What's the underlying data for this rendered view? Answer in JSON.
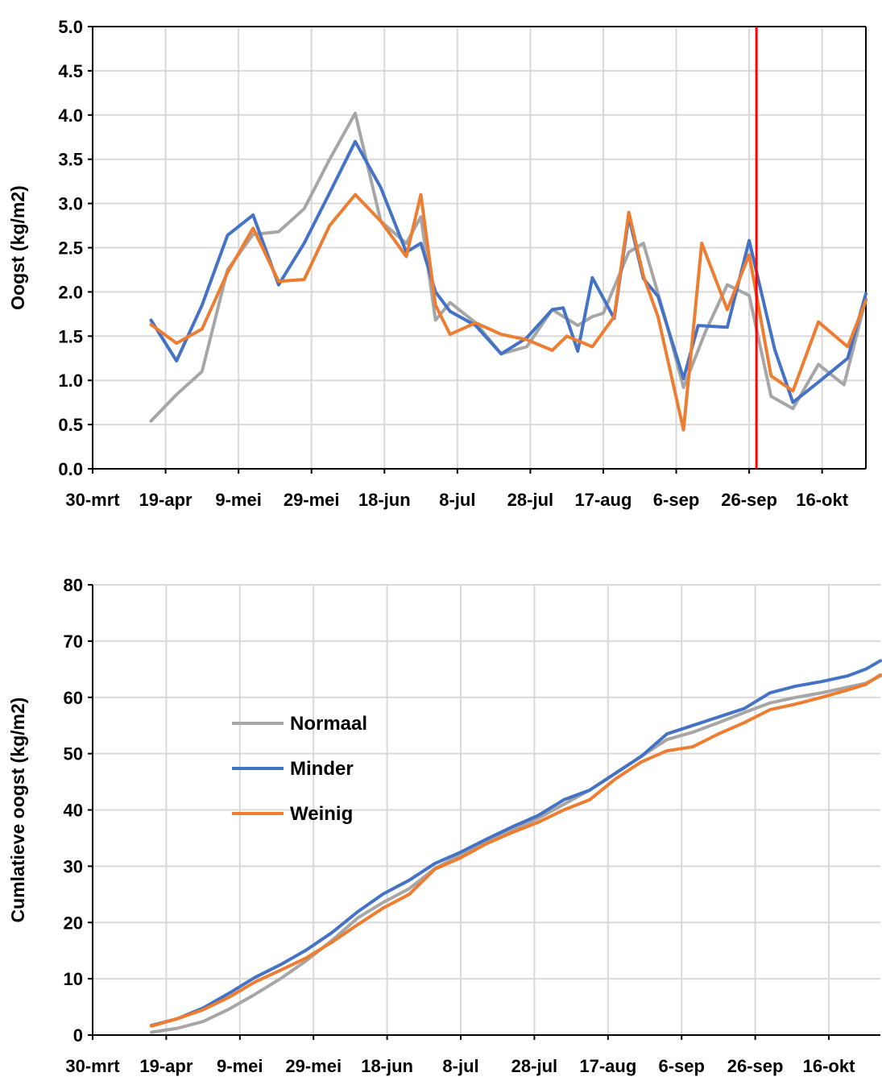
{
  "colors": {
    "Normaal": "#a6a6a6",
    "Minder": "#4472c4",
    "Weinig": "#ed7d31",
    "marker": "#ff0000",
    "grid": "#d9d9d9"
  },
  "chart_data": [
    {
      "type": "line",
      "title": "",
      "xlabel": "",
      "ylabel": "Oogst (kg/m2)",
      "ylim": [
        0,
        5
      ],
      "yticks": [
        "0.0",
        "0.5",
        "1.0",
        "1.5",
        "2.0",
        "2.5",
        "3.0",
        "3.5",
        "4.0",
        "4.5",
        "5.0"
      ],
      "xticks": [
        "30-mrt",
        "19-apr",
        "9-mei",
        "29-mei",
        "18-jun",
        "8-jul",
        "28-jul",
        "17-aug",
        "6-sep",
        "26-sep",
        "16-okt"
      ],
      "x_start": "2020-03-30",
      "xlim": [
        "2020-03-30",
        "2020-10-28"
      ],
      "grid": true,
      "vertical_marker": "2020-09-28",
      "series": [
        {
          "name": "Normaal",
          "points": [
            [
              "2020-04-15",
              0.54
            ],
            [
              "2020-04-22",
              0.84
            ],
            [
              "2020-04-29",
              1.1
            ],
            [
              "2020-05-06",
              2.25
            ],
            [
              "2020-05-13",
              2.65
            ],
            [
              "2020-05-20",
              2.68
            ],
            [
              "2020-05-27",
              2.94
            ],
            [
              "2020-06-03",
              3.5
            ],
            [
              "2020-06-10",
              4.02
            ],
            [
              "2020-06-17",
              2.8
            ],
            [
              "2020-06-24",
              2.55
            ],
            [
              "2020-06-28",
              2.85
            ],
            [
              "2020-07-02",
              1.68
            ],
            [
              "2020-07-06",
              1.88
            ],
            [
              "2020-07-13",
              1.65
            ],
            [
              "2020-07-20",
              1.3
            ],
            [
              "2020-07-27",
              1.38
            ],
            [
              "2020-08-03",
              1.8
            ],
            [
              "2020-08-10",
              1.62
            ],
            [
              "2020-08-14",
              1.72
            ],
            [
              "2020-08-17",
              1.76
            ],
            [
              "2020-08-24",
              2.45
            ],
            [
              "2020-08-28",
              2.55
            ],
            [
              "2020-09-03",
              1.7
            ],
            [
              "2020-09-08",
              0.92
            ],
            [
              "2020-09-14",
              1.55
            ],
            [
              "2020-09-20",
              2.08
            ],
            [
              "2020-09-26",
              1.96
            ],
            [
              "2020-10-02",
              0.82
            ],
            [
              "2020-10-08",
              0.68
            ],
            [
              "2020-10-15",
              1.18
            ],
            [
              "2020-10-22",
              0.95
            ],
            [
              "2020-10-28",
              1.92
            ]
          ]
        },
        {
          "name": "Minder",
          "points": [
            [
              "2020-04-15",
              1.68
            ],
            [
              "2020-04-22",
              1.22
            ],
            [
              "2020-04-29",
              1.85
            ],
            [
              "2020-05-06",
              2.64
            ],
            [
              "2020-05-13",
              2.87
            ],
            [
              "2020-05-20",
              2.08
            ],
            [
              "2020-05-27",
              2.55
            ],
            [
              "2020-06-03",
              3.12
            ],
            [
              "2020-06-10",
              3.7
            ],
            [
              "2020-06-17",
              3.18
            ],
            [
              "2020-06-24",
              2.45
            ],
            [
              "2020-06-28",
              2.55
            ],
            [
              "2020-07-02",
              2.0
            ],
            [
              "2020-07-06",
              1.78
            ],
            [
              "2020-07-13",
              1.62
            ],
            [
              "2020-07-20",
              1.3
            ],
            [
              "2020-07-27",
              1.48
            ],
            [
              "2020-08-03",
              1.8
            ],
            [
              "2020-08-06",
              1.82
            ],
            [
              "2020-08-10",
              1.33
            ],
            [
              "2020-08-14",
              2.16
            ],
            [
              "2020-08-20",
              1.7
            ],
            [
              "2020-08-24",
              2.85
            ],
            [
              "2020-08-28",
              2.15
            ],
            [
              "2020-09-01",
              1.95
            ],
            [
              "2020-09-08",
              1.02
            ],
            [
              "2020-09-12",
              1.62
            ],
            [
              "2020-09-20",
              1.6
            ],
            [
              "2020-09-26",
              2.58
            ],
            [
              "2020-10-03",
              1.35
            ],
            [
              "2020-10-08",
              0.75
            ],
            [
              "2020-10-15",
              0.98
            ],
            [
              "2020-10-23",
              1.25
            ],
            [
              "2020-10-28",
              1.98
            ]
          ]
        },
        {
          "name": "Weinig",
          "points": [
            [
              "2020-04-15",
              1.63
            ],
            [
              "2020-04-22",
              1.42
            ],
            [
              "2020-04-29",
              1.58
            ],
            [
              "2020-05-06",
              2.22
            ],
            [
              "2020-05-13",
              2.72
            ],
            [
              "2020-05-20",
              2.12
            ],
            [
              "2020-05-27",
              2.14
            ],
            [
              "2020-06-03",
              2.75
            ],
            [
              "2020-06-10",
              3.1
            ],
            [
              "2020-06-17",
              2.8
            ],
            [
              "2020-06-24",
              2.4
            ],
            [
              "2020-06-28",
              3.1
            ],
            [
              "2020-07-02",
              1.85
            ],
            [
              "2020-07-06",
              1.52
            ],
            [
              "2020-07-13",
              1.65
            ],
            [
              "2020-07-20",
              1.52
            ],
            [
              "2020-07-27",
              1.46
            ],
            [
              "2020-08-03",
              1.34
            ],
            [
              "2020-08-07",
              1.5
            ],
            [
              "2020-08-14",
              1.38
            ],
            [
              "2020-08-20",
              1.72
            ],
            [
              "2020-08-24",
              2.9
            ],
            [
              "2020-08-28",
              2.18
            ],
            [
              "2020-09-01",
              1.72
            ],
            [
              "2020-09-08",
              0.44
            ],
            [
              "2020-09-13",
              2.55
            ],
            [
              "2020-09-20",
              1.8
            ],
            [
              "2020-09-26",
              2.42
            ],
            [
              "2020-10-02",
              1.05
            ],
            [
              "2020-10-08",
              0.88
            ],
            [
              "2020-10-15",
              1.66
            ],
            [
              "2020-10-23",
              1.38
            ],
            [
              "2020-10-28",
              1.9
            ]
          ]
        }
      ]
    },
    {
      "type": "line",
      "title": "",
      "xlabel": "",
      "ylabel": "Cumlatieve oogst (kg/m2)",
      "ylim": [
        0,
        80
      ],
      "yticks": [
        "0",
        "10",
        "20",
        "30",
        "40",
        "50",
        "60",
        "70",
        "80"
      ],
      "xticks": [
        "30-mrt",
        "19-apr",
        "9-mei",
        "29-mei",
        "18-jun",
        "8-jul",
        "28-jul",
        "17-aug",
        "6-sep",
        "26-sep",
        "16-okt"
      ],
      "x_start": "2020-03-30",
      "xlim": [
        "2020-03-30",
        "2020-10-30"
      ],
      "grid": true,
      "legend_position": "center-left",
      "legend": [
        "Normaal",
        "Minder",
        "Weinig"
      ],
      "series": [
        {
          "name": "Normaal",
          "points": [
            [
              "2020-04-15",
              0.5
            ],
            [
              "2020-04-22",
              1.2
            ],
            [
              "2020-04-29",
              2.4
            ],
            [
              "2020-05-06",
              4.6
            ],
            [
              "2020-05-13",
              7.2
            ],
            [
              "2020-05-20",
              10
            ],
            [
              "2020-05-27",
              13.2
            ],
            [
              "2020-06-03",
              16.8
            ],
            [
              "2020-06-10",
              20.8
            ],
            [
              "2020-06-17",
              23.6
            ],
            [
              "2020-06-24",
              26
            ],
            [
              "2020-07-01",
              29.6
            ],
            [
              "2020-07-08",
              32
            ],
            [
              "2020-07-15",
              34.5
            ],
            [
              "2020-07-22",
              36.5
            ],
            [
              "2020-07-29",
              38.5
            ],
            [
              "2020-08-05",
              41
            ],
            [
              "2020-08-12",
              43.5
            ],
            [
              "2020-08-19",
              46.5
            ],
            [
              "2020-08-26",
              49.5
            ],
            [
              "2020-09-02",
              52.5
            ],
            [
              "2020-09-09",
              53.8
            ],
            [
              "2020-09-16",
              55.5
            ],
            [
              "2020-09-23",
              57.3
            ],
            [
              "2020-09-30",
              59
            ],
            [
              "2020-10-07",
              60
            ],
            [
              "2020-10-14",
              60.8
            ],
            [
              "2020-10-21",
              61.8
            ],
            [
              "2020-10-26",
              62.5
            ],
            [
              "2020-10-30",
              63.8
            ]
          ]
        },
        {
          "name": "Minder",
          "points": [
            [
              "2020-04-15",
              1.7
            ],
            [
              "2020-04-22",
              2.9
            ],
            [
              "2020-04-29",
              4.8
            ],
            [
              "2020-05-06",
              7.4
            ],
            [
              "2020-05-13",
              10.2
            ],
            [
              "2020-05-20",
              12.5
            ],
            [
              "2020-05-27",
              15.1
            ],
            [
              "2020-06-03",
              18.2
            ],
            [
              "2020-06-10",
              21.9
            ],
            [
              "2020-06-17",
              25.1
            ],
            [
              "2020-06-24",
              27.5
            ],
            [
              "2020-07-01",
              30.5
            ],
            [
              "2020-07-08",
              32.5
            ],
            [
              "2020-07-15",
              34.8
            ],
            [
              "2020-07-22",
              37
            ],
            [
              "2020-07-29",
              39
            ],
            [
              "2020-08-05",
              41.8
            ],
            [
              "2020-08-12",
              43.5
            ],
            [
              "2020-08-19",
              46.5
            ],
            [
              "2020-08-26",
              49.5
            ],
            [
              "2020-09-02",
              53.5
            ],
            [
              "2020-09-09",
              55
            ],
            [
              "2020-09-16",
              56.5
            ],
            [
              "2020-09-23",
              58
            ],
            [
              "2020-09-30",
              60.8
            ],
            [
              "2020-10-07",
              62
            ],
            [
              "2020-10-14",
              62.8
            ],
            [
              "2020-10-21",
              63.8
            ],
            [
              "2020-10-26",
              65
            ],
            [
              "2020-10-30",
              66.5
            ]
          ]
        },
        {
          "name": "Weinig",
          "points": [
            [
              "2020-04-15",
              1.6
            ],
            [
              "2020-04-22",
              2.9
            ],
            [
              "2020-04-29",
              4.5
            ],
            [
              "2020-05-06",
              6.7
            ],
            [
              "2020-05-13",
              9.4
            ],
            [
              "2020-05-20",
              11.5
            ],
            [
              "2020-05-27",
              13.7
            ],
            [
              "2020-06-03",
              16.5
            ],
            [
              "2020-06-10",
              19.6
            ],
            [
              "2020-06-17",
              22.6
            ],
            [
              "2020-06-24",
              25
            ],
            [
              "2020-07-01",
              29.5
            ],
            [
              "2020-07-08",
              31.5
            ],
            [
              "2020-07-15",
              34
            ],
            [
              "2020-07-22",
              36
            ],
            [
              "2020-07-29",
              37.8
            ],
            [
              "2020-08-05",
              40
            ],
            [
              "2020-08-12",
              41.8
            ],
            [
              "2020-08-19",
              45.5
            ],
            [
              "2020-08-26",
              48.5
            ],
            [
              "2020-09-02",
              50.5
            ],
            [
              "2020-09-09",
              51.2
            ],
            [
              "2020-09-16",
              53.5
            ],
            [
              "2020-09-23",
              55.5
            ],
            [
              "2020-09-30",
              57.8
            ],
            [
              "2020-10-07",
              58.8
            ],
            [
              "2020-10-14",
              60
            ],
            [
              "2020-10-21",
              61.3
            ],
            [
              "2020-10-26",
              62.3
            ],
            [
              "2020-10-30",
              64
            ]
          ]
        }
      ]
    }
  ]
}
